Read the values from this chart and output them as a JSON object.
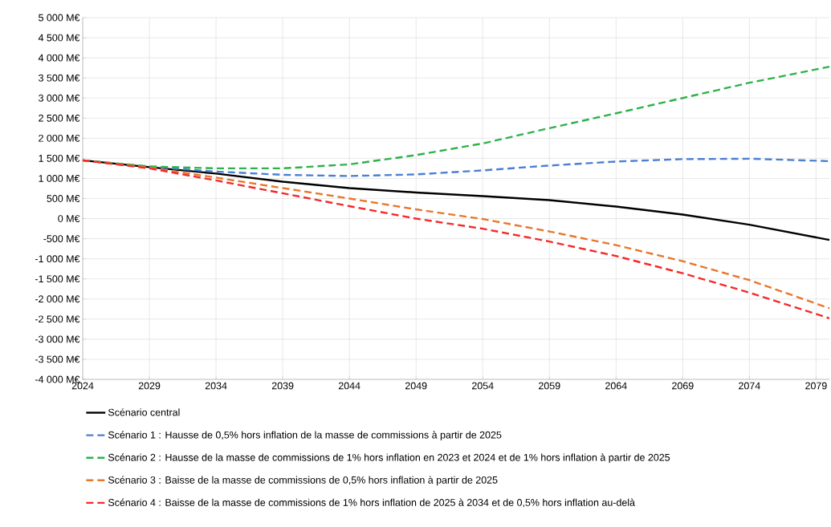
{
  "chart_data": {
    "type": "line",
    "x": [
      2024,
      2029,
      2034,
      2039,
      2044,
      2049,
      2054,
      2059,
      2064,
      2069,
      2074,
      2080
    ],
    "xlim": [
      2024,
      2080
    ],
    "xticks": [
      2024,
      2029,
      2034,
      2039,
      2044,
      2049,
      2054,
      2059,
      2064,
      2069,
      2074,
      2079
    ],
    "ylim": [
      -4000,
      5000
    ],
    "yticks": [
      {
        "value": -4000,
        "label": "-4 000 M€"
      },
      {
        "value": -3500,
        "label": "-3 500 M€"
      },
      {
        "value": -3000,
        "label": "-3 000 M€"
      },
      {
        "value": -2500,
        "label": "-2 500 M€"
      },
      {
        "value": -2000,
        "label": "-2 000 M€"
      },
      {
        "value": -1500,
        "label": "-1 500 M€"
      },
      {
        "value": -1000,
        "label": "-1 000 M€"
      },
      {
        "value": -500,
        "label": "-500 M€"
      },
      {
        "value": 0,
        "label": "0 M€"
      },
      {
        "value": 500,
        "label": "500 M€"
      },
      {
        "value": 1000,
        "label": "1 000 M€"
      },
      {
        "value": 1500,
        "label": "1 500 M€"
      },
      {
        "value": 2000,
        "label": "2 000 M€"
      },
      {
        "value": 2500,
        "label": "2 500 M€"
      },
      {
        "value": 3000,
        "label": "3 000 M€"
      },
      {
        "value": 3500,
        "label": "3 500 M€"
      },
      {
        "value": 4000,
        "label": "4 000 M€"
      },
      {
        "value": 4500,
        "label": "4 500 M€"
      },
      {
        "value": 5000,
        "label": "5 000 M€"
      }
    ],
    "grid": true,
    "legend": "bottom",
    "marker": "none",
    "series": [
      {
        "name": "Scénario central",
        "color": "#000000",
        "line_style": "solid",
        "values": [
          1450,
          1280,
          1120,
          920,
          760,
          650,
          560,
          460,
          300,
          100,
          -150,
          -530
        ]
      },
      {
        "name": "Scénario 1 : Hausse de 0,5% hors inflation de la masse de commissions à partir de 2025",
        "color": "#4a7fd4",
        "line_style": "dashed",
        "values": [
          1450,
          1290,
          1170,
          1090,
          1060,
          1100,
          1200,
          1320,
          1420,
          1480,
          1490,
          1430
        ]
      },
      {
        "name": "Scénario 2 : Hausse de la masse de commissions de 1% hors inflation en 2023 et 2024 et de 1% hors inflation à partir de 2025",
        "color": "#2db14a",
        "line_style": "dashed",
        "values": [
          1450,
          1300,
          1250,
          1250,
          1350,
          1580,
          1870,
          2250,
          2620,
          3000,
          3380,
          3780
        ]
      },
      {
        "name": "Scénario 3 : Baisse de la masse de commissions de 0,5% hors inflation à partir de 2025",
        "color": "#e8772a",
        "line_style": "dashed",
        "values": [
          1450,
          1270,
          1020,
          760,
          500,
          230,
          -10,
          -320,
          -660,
          -1060,
          -1530,
          -2230
        ]
      },
      {
        "name": "Scénario 4 : Baisse de la masse de commissions de 1% hors inflation de 2025 à 2034 et de 0,5% hors inflation au-delà",
        "color": "#f42a2a",
        "line_style": "dashed",
        "values": [
          1450,
          1250,
          950,
          630,
          310,
          0,
          -250,
          -570,
          -930,
          -1360,
          -1840,
          -2480
        ]
      }
    ]
  }
}
